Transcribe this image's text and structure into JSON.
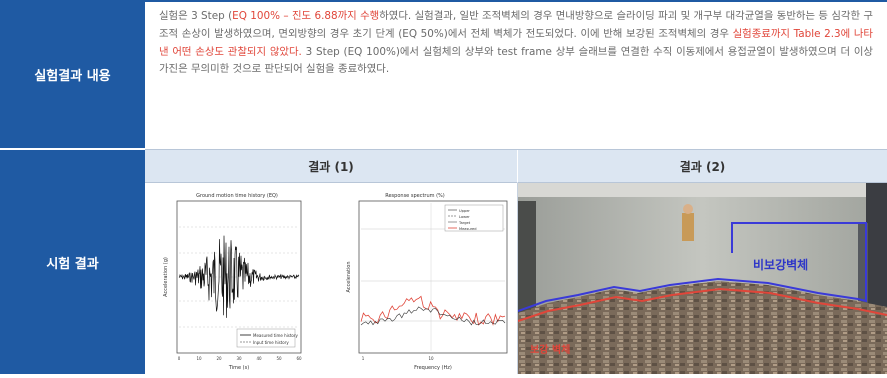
{
  "table": {
    "row1_label": "실험결과 내용",
    "row2_label": "시험 결과",
    "content_parts": [
      {
        "text": "실험은 3 Step (",
        "style": "normal"
      },
      {
        "text": "EQ 100% – 진도 6.88까지 수행",
        "style": "red"
      },
      {
        "text": "하였다. 실험결과, 일반 조적벽체의 경우 면내방향으로 슬라이딩 파괴 및 개구부 대각균열을 동반하는 등 심각한 구조적 손상이 발생하였으며, 면외방향의 경우 초기 단계 (EQ 50%)에서 전체 벽체가 전도되었다. 이에 반해 보강된 조적벽체의 경우 ",
        "style": "normal"
      },
      {
        "text": "실험종료까지 Table 2.3에 나타낸 어떤 손상도 관찰되지 않았다.",
        "style": "red"
      },
      {
        "text": " 3 Step (EQ 100%)에서 실험체의 상부와 test frame 상부 슬래브를 연결한 수직 이동제에서 용접균열이 발생하였으며 더 이상 가진은 무의미한 것으로 판단되어 실험을 종료하였다.",
        "style": "normal"
      }
    ],
    "header_1": "결과 (1)",
    "header_2": "결과 (2)"
  },
  "figure1": {
    "chart_data": [
      {
        "type": "line",
        "title": "Ground motion time history (EQ)",
        "xlabel": "Time (s)",
        "ylabel": "Acceleration (g)",
        "x_ticks": [
          "0",
          "10",
          "20",
          "30",
          "40",
          "50",
          "60"
        ],
        "series": [
          {
            "name": "Measured time history"
          },
          {
            "name": "Input time history"
          }
        ]
      },
      {
        "type": "line",
        "title": "Response spectrum (%)",
        "xlabel": "Frequency (Hz)",
        "ylabel": "Acceleration",
        "x_ticks": [
          "1",
          "10"
        ],
        "series": [
          {
            "name": "Upper"
          },
          {
            "name": "Lower"
          },
          {
            "name": "Target"
          },
          {
            "name": "Measured"
          }
        ]
      }
    ]
  },
  "photo": {
    "label_wall": "비보강벽체",
    "label_bottom": "보강 벽체"
  },
  "colors": {
    "header_blue": "#1f5aa3",
    "subheader_bg": "#dce6f2",
    "accent_red": "#e0463a",
    "outline_blue": "#3a3ad8"
  }
}
